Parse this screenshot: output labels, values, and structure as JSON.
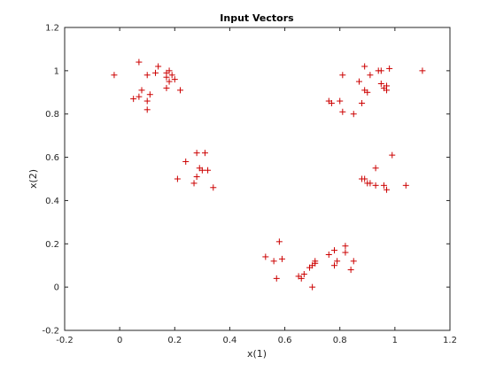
{
  "chart_data": {
    "type": "scatter",
    "title": "Input Vectors",
    "xlabel": "x(1)",
    "ylabel": "x(2)",
    "xlim": [
      -0.2,
      1.2
    ],
    "ylim": [
      -0.2,
      1.2
    ],
    "xticks": [
      -0.2,
      0,
      0.2,
      0.4,
      0.6,
      0.8,
      1,
      1.2
    ],
    "yticks": [
      -0.2,
      0,
      0.2,
      0.4,
      0.6,
      0.8,
      1,
      1.2
    ],
    "xtick_labels": [
      "-0.2",
      "0",
      "0.2",
      "0.4",
      "0.6",
      "0.8",
      "1",
      "1.2"
    ],
    "ytick_labels": [
      "-0.2",
      "0",
      "0.2",
      "0.4",
      "0.6",
      "0.8",
      "1",
      "1.2"
    ],
    "grid": false,
    "marker": "+",
    "color": "#cc0000",
    "points": [
      [
        -0.02,
        0.98
      ],
      [
        0.07,
        1.04
      ],
      [
        0.14,
        1.02
      ],
      [
        0.13,
        0.99
      ],
      [
        0.17,
        0.99
      ],
      [
        0.18,
        1.0
      ],
      [
        0.19,
        0.98
      ],
      [
        0.17,
        0.97
      ],
      [
        0.2,
        0.96
      ],
      [
        0.1,
        0.98
      ],
      [
        0.08,
        0.91
      ],
      [
        0.11,
        0.89
      ],
      [
        0.05,
        0.87
      ],
      [
        0.07,
        0.88
      ],
      [
        0.1,
        0.86
      ],
      [
        0.1,
        0.82
      ],
      [
        0.17,
        0.92
      ],
      [
        0.18,
        0.95
      ],
      [
        0.22,
        0.91
      ],
      [
        0.28,
        0.62
      ],
      [
        0.31,
        0.62
      ],
      [
        0.24,
        0.58
      ],
      [
        0.29,
        0.55
      ],
      [
        0.3,
        0.54
      ],
      [
        0.32,
        0.54
      ],
      [
        0.28,
        0.51
      ],
      [
        0.21,
        0.5
      ],
      [
        0.27,
        0.48
      ],
      [
        0.34,
        0.46
      ],
      [
        0.81,
        0.98
      ],
      [
        0.89,
        1.02
      ],
      [
        0.91,
        0.98
      ],
      [
        0.94,
        1.0
      ],
      [
        0.95,
        1.0
      ],
      [
        0.98,
        1.01
      ],
      [
        1.1,
        1.0
      ],
      [
        0.87,
        0.95
      ],
      [
        0.95,
        0.94
      ],
      [
        0.97,
        0.93
      ],
      [
        0.96,
        0.92
      ],
      [
        0.97,
        0.91
      ],
      [
        0.89,
        0.91
      ],
      [
        0.9,
        0.9
      ],
      [
        0.76,
        0.86
      ],
      [
        0.77,
        0.85
      ],
      [
        0.8,
        0.86
      ],
      [
        0.88,
        0.85
      ],
      [
        0.81,
        0.81
      ],
      [
        0.85,
        0.8
      ],
      [
        0.99,
        0.61
      ],
      [
        0.93,
        0.55
      ],
      [
        0.88,
        0.5
      ],
      [
        0.89,
        0.5
      ],
      [
        0.9,
        0.48
      ],
      [
        0.91,
        0.48
      ],
      [
        0.93,
        0.47
      ],
      [
        0.96,
        0.47
      ],
      [
        1.04,
        0.47
      ],
      [
        0.97,
        0.45
      ],
      [
        0.58,
        0.21
      ],
      [
        0.53,
        0.14
      ],
      [
        0.59,
        0.13
      ],
      [
        0.56,
        0.12
      ],
      [
        0.57,
        0.04
      ],
      [
        0.65,
        0.05
      ],
      [
        0.66,
        0.04
      ],
      [
        0.67,
        0.06
      ],
      [
        0.69,
        0.09
      ],
      [
        0.7,
        0.1
      ],
      [
        0.71,
        0.12
      ],
      [
        0.71,
        0.11
      ],
      [
        0.7,
        0.0
      ],
      [
        0.76,
        0.15
      ],
      [
        0.78,
        0.17
      ],
      [
        0.79,
        0.12
      ],
      [
        0.78,
        0.1
      ],
      [
        0.82,
        0.19
      ],
      [
        0.82,
        0.16
      ],
      [
        0.85,
        0.12
      ],
      [
        0.84,
        0.08
      ]
    ]
  }
}
